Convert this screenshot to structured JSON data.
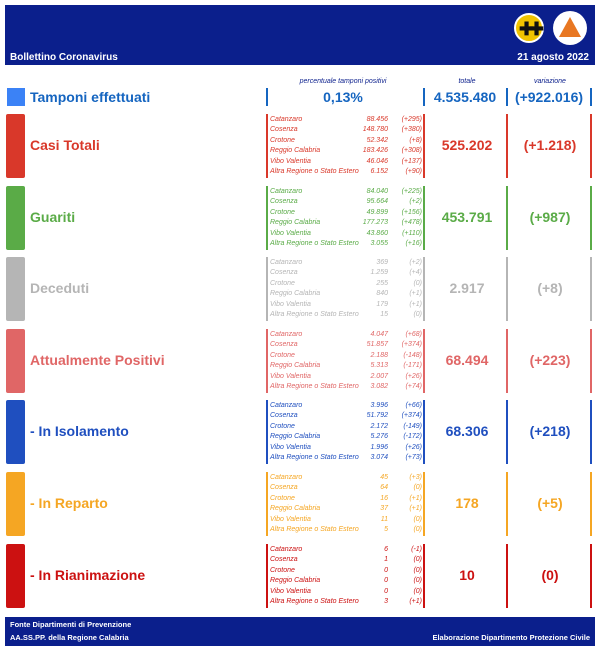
{
  "header": {
    "title": "Bollettino Coronavirus",
    "date": "21 agosto 2022"
  },
  "column_headers": {
    "percent": "percentuale tamponi positivi",
    "total": "totale",
    "variation": "variazione"
  },
  "tamponi": {
    "label": "Tamponi effettuati",
    "percent": "0,13%",
    "total": "4.535.480",
    "variation": "(+922.016)",
    "color": "#1565c0"
  },
  "sections": [
    {
      "id": "casi-totali",
      "label": "Casi Totali",
      "color": "#d9382a",
      "total": "525.202",
      "variation": "(+1.218)",
      "provinces": [
        {
          "name": "Catanzaro",
          "value": "88.456",
          "delta": "(+295)"
        },
        {
          "name": "Cosenza",
          "value": "148.780",
          "delta": "(+380)"
        },
        {
          "name": "Crotone",
          "value": "52.342",
          "delta": "(+8)"
        },
        {
          "name": "Reggio Calabria",
          "value": "183.426",
          "delta": "(+308)"
        },
        {
          "name": "Vibo Valentia",
          "value": "46.046",
          "delta": "(+137)"
        },
        {
          "name": "Altra Regione o Stato Estero",
          "value": "6.152",
          "delta": "(+90)"
        }
      ]
    },
    {
      "id": "guariti",
      "label": "Guariti",
      "color": "#5aab47",
      "total": "453.791",
      "variation": "(+987)",
      "provinces": [
        {
          "name": "Catanzaro",
          "value": "84.040",
          "delta": "(+225)"
        },
        {
          "name": "Cosenza",
          "value": "95.664",
          "delta": "(+2)"
        },
        {
          "name": "Crotone",
          "value": "49.899",
          "delta": "(+156)"
        },
        {
          "name": "Reggio Calabria",
          "value": "177.273",
          "delta": "(+478)"
        },
        {
          "name": "Vibo Valentia",
          "value": "43.860",
          "delta": "(+110)"
        },
        {
          "name": "Altra Regione o Stato Estero",
          "value": "3.055",
          "delta": "(+16)"
        }
      ]
    },
    {
      "id": "deceduti",
      "label": "Deceduti",
      "color": "#b5b5b5",
      "total": "2.917",
      "variation": "(+8)",
      "provinces": [
        {
          "name": "Catanzaro",
          "value": "369",
          "delta": "(+2)"
        },
        {
          "name": "Cosenza",
          "value": "1.259",
          "delta": "(+4)"
        },
        {
          "name": "Crotone",
          "value": "255",
          "delta": "(0)"
        },
        {
          "name": "Reggio Calabria",
          "value": "840",
          "delta": "(+1)"
        },
        {
          "name": "Vibo Valentia",
          "value": "179",
          "delta": "(+1)"
        },
        {
          "name": "Altra Regione o Stato Estero",
          "value": "15",
          "delta": "(0)"
        }
      ]
    },
    {
      "id": "attualmente-positivi",
      "label": "Attualmente Positivi",
      "color": "#e06666",
      "total": "68.494",
      "variation": "(+223)",
      "provinces": [
        {
          "name": "Catanzaro",
          "value": "4.047",
          "delta": "(+68)"
        },
        {
          "name": "Cosenza",
          "value": "51.857",
          "delta": "(+374)"
        },
        {
          "name": "Crotone",
          "value": "2.188",
          "delta": "(-148)"
        },
        {
          "name": "Reggio Calabria",
          "value": "5.313",
          "delta": "(-171)"
        },
        {
          "name": "Vibo Valentia",
          "value": "2.007",
          "delta": "(+26)"
        },
        {
          "name": "Altra Regione o Stato Estero",
          "value": "3.082",
          "delta": "(+74)"
        }
      ]
    },
    {
      "id": "in-isolamento",
      "label": "- In Isolamento",
      "color": "#1f4fbf",
      "total": "68.306",
      "variation": "(+218)",
      "provinces": [
        {
          "name": "Catanzaro",
          "value": "3.996",
          "delta": "(+66)"
        },
        {
          "name": "Cosenza",
          "value": "51.792",
          "delta": "(+374)"
        },
        {
          "name": "Crotone",
          "value": "2.172",
          "delta": "(-149)"
        },
        {
          "name": "Reggio Calabria",
          "value": "5.276",
          "delta": "(-172)"
        },
        {
          "name": "Vibo Valentia",
          "value": "1.996",
          "delta": "(+26)"
        },
        {
          "name": "Altra Regione o Stato Estero",
          "value": "3.074",
          "delta": "(+73)"
        }
      ]
    },
    {
      "id": "in-reparto",
      "label": "- In Reparto",
      "color": "#f5a623",
      "total": "178",
      "variation": "(+5)",
      "provinces": [
        {
          "name": "Catanzaro",
          "value": "45",
          "delta": "(+3)"
        },
        {
          "name": "Cosenza",
          "value": "64",
          "delta": "(0)"
        },
        {
          "name": "Crotone",
          "value": "16",
          "delta": "(+1)"
        },
        {
          "name": "Reggio Calabria",
          "value": "37",
          "delta": "(+1)"
        },
        {
          "name": "Vibo Valentia",
          "value": "11",
          "delta": "(0)"
        },
        {
          "name": "Altra Regione o Stato Estero",
          "value": "5",
          "delta": "(0)"
        }
      ]
    },
    {
      "id": "in-rianimazione",
      "label": "- In Rianimazione",
      "color": "#cc1111",
      "total": "10",
      "variation": "(0)",
      "provinces": [
        {
          "name": "Catanzaro",
          "value": "6",
          "delta": "(-1)"
        },
        {
          "name": "Cosenza",
          "value": "1",
          "delta": "(0)"
        },
        {
          "name": "Crotone",
          "value": "0",
          "delta": "(0)"
        },
        {
          "name": "Reggio Calabria",
          "value": "0",
          "delta": "(0)"
        },
        {
          "name": "Vibo Valentia",
          "value": "0",
          "delta": "(0)"
        },
        {
          "name": "Altra Regione o Stato Estero",
          "value": "3",
          "delta": "(+1)"
        }
      ]
    }
  ],
  "footer": {
    "source_line1": "Fonte Dipartimenti di Prevenzione",
    "source_line2": "AA.SS.PP.  della Regione Calabria",
    "credit": "Elaborazione Dipartimento Protezione Civile"
  }
}
